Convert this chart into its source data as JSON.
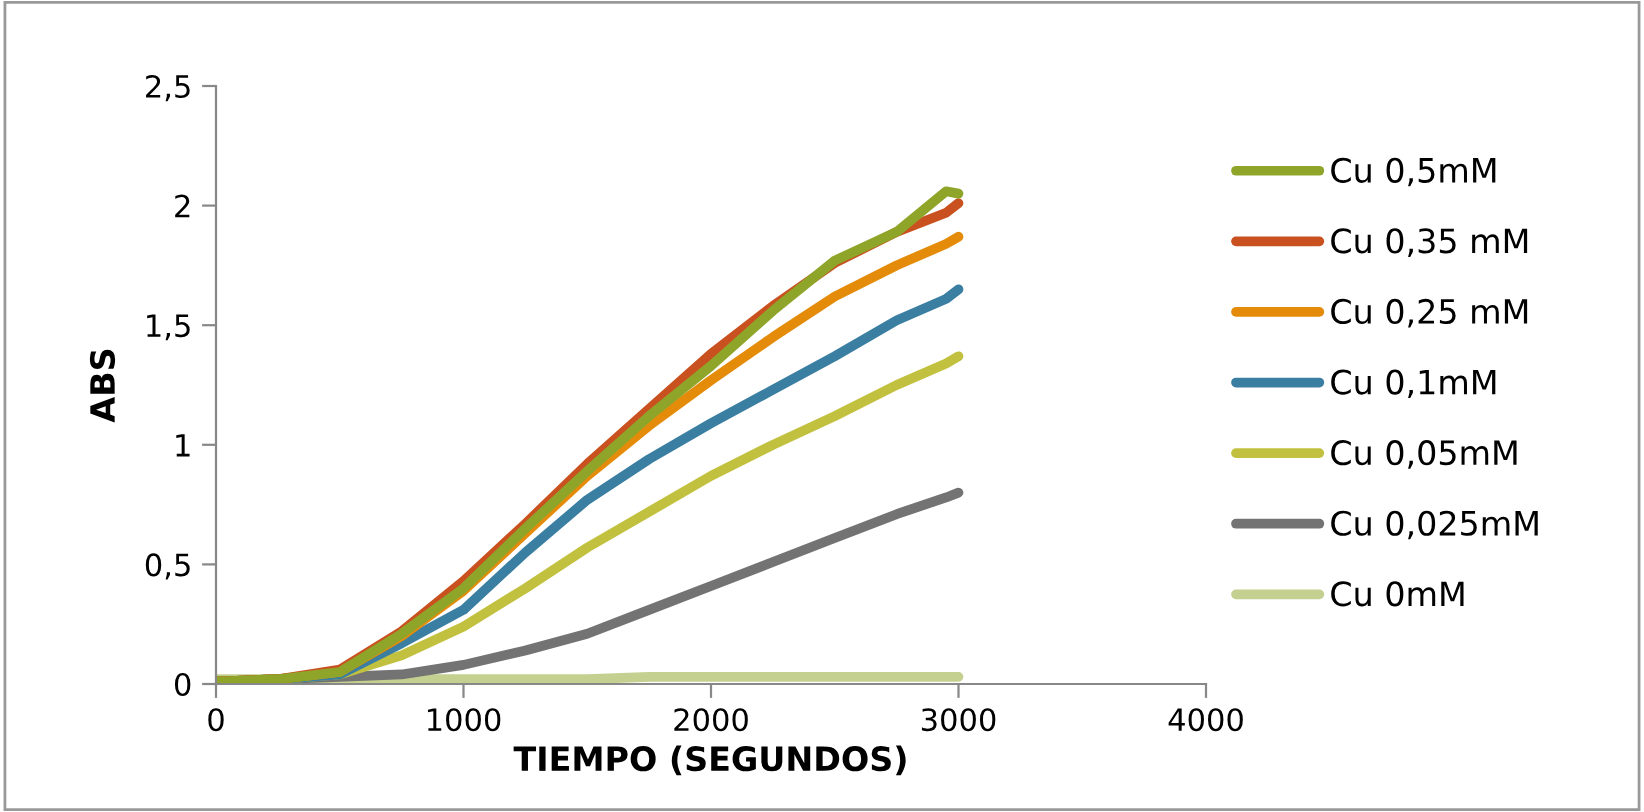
{
  "chart_data": {
    "type": "line",
    "xlabel": "TIEMPO (SEGUNDOS)",
    "ylabel": "ABS",
    "x": [
      0,
      250,
      500,
      750,
      1000,
      1250,
      1500,
      1750,
      2000,
      2250,
      2500,
      2750,
      2950,
      3000
    ],
    "xlim": [
      0,
      4000
    ],
    "xticks": [
      0,
      1000,
      2000,
      3000,
      4000
    ],
    "ylim": [
      0,
      2.5
    ],
    "yticks": [
      {
        "value": 0,
        "label": "0"
      },
      {
        "value": 0.5,
        "label": "0,5"
      },
      {
        "value": 1,
        "label": "1"
      },
      {
        "value": 1.5,
        "label": "1,5"
      },
      {
        "value": 2,
        "label": "2"
      },
      {
        "value": 2.5,
        "label": "2,5"
      }
    ],
    "grid": false,
    "legend": "right",
    "marker": "none",
    "line_style": "solid",
    "series": [
      {
        "name": "Cu 0,5mM",
        "color": "#8fa52a",
        "values": [
          0.01,
          0.02,
          0.05,
          0.21,
          0.4,
          0.65,
          0.89,
          1.12,
          1.33,
          1.56,
          1.77,
          1.89,
          2.06,
          2.05
        ]
      },
      {
        "name": "Cu 0,35 mM",
        "color": "#c9511f",
        "values": [
          0.01,
          0.02,
          0.06,
          0.22,
          0.43,
          0.67,
          0.92,
          1.15,
          1.38,
          1.58,
          1.76,
          1.89,
          1.97,
          2.01
        ]
      },
      {
        "name": "Cu 0,25 mM",
        "color": "#e48c0a",
        "values": [
          0.01,
          0.02,
          0.05,
          0.2,
          0.39,
          0.63,
          0.87,
          1.08,
          1.27,
          1.45,
          1.62,
          1.75,
          1.84,
          1.87
        ]
      },
      {
        "name": "Cu 0,1mM",
        "color": "#3a7ea1",
        "values": [
          0.01,
          0.02,
          0.04,
          0.17,
          0.31,
          0.55,
          0.77,
          0.94,
          1.09,
          1.23,
          1.37,
          1.52,
          1.61,
          1.65
        ]
      },
      {
        "name": "Cu 0,05mM",
        "color": "#c2c13f",
        "values": [
          0.01,
          0.02,
          0.04,
          0.12,
          0.24,
          0.4,
          0.57,
          0.72,
          0.87,
          1.0,
          1.12,
          1.25,
          1.34,
          1.37
        ]
      },
      {
        "name": "Cu 0,025mM",
        "color": "#737373",
        "values": [
          0.01,
          0.02,
          0.03,
          0.04,
          0.08,
          0.14,
          0.21,
          0.31,
          0.41,
          0.51,
          0.61,
          0.71,
          0.78,
          0.8
        ]
      },
      {
        "name": "Cu 0mM",
        "color": "#c4d08f",
        "values": [
          0.02,
          0.02,
          0.02,
          0.02,
          0.02,
          0.02,
          0.02,
          0.03,
          0.03,
          0.03,
          0.03,
          0.03,
          0.03,
          0.03
        ]
      }
    ]
  }
}
